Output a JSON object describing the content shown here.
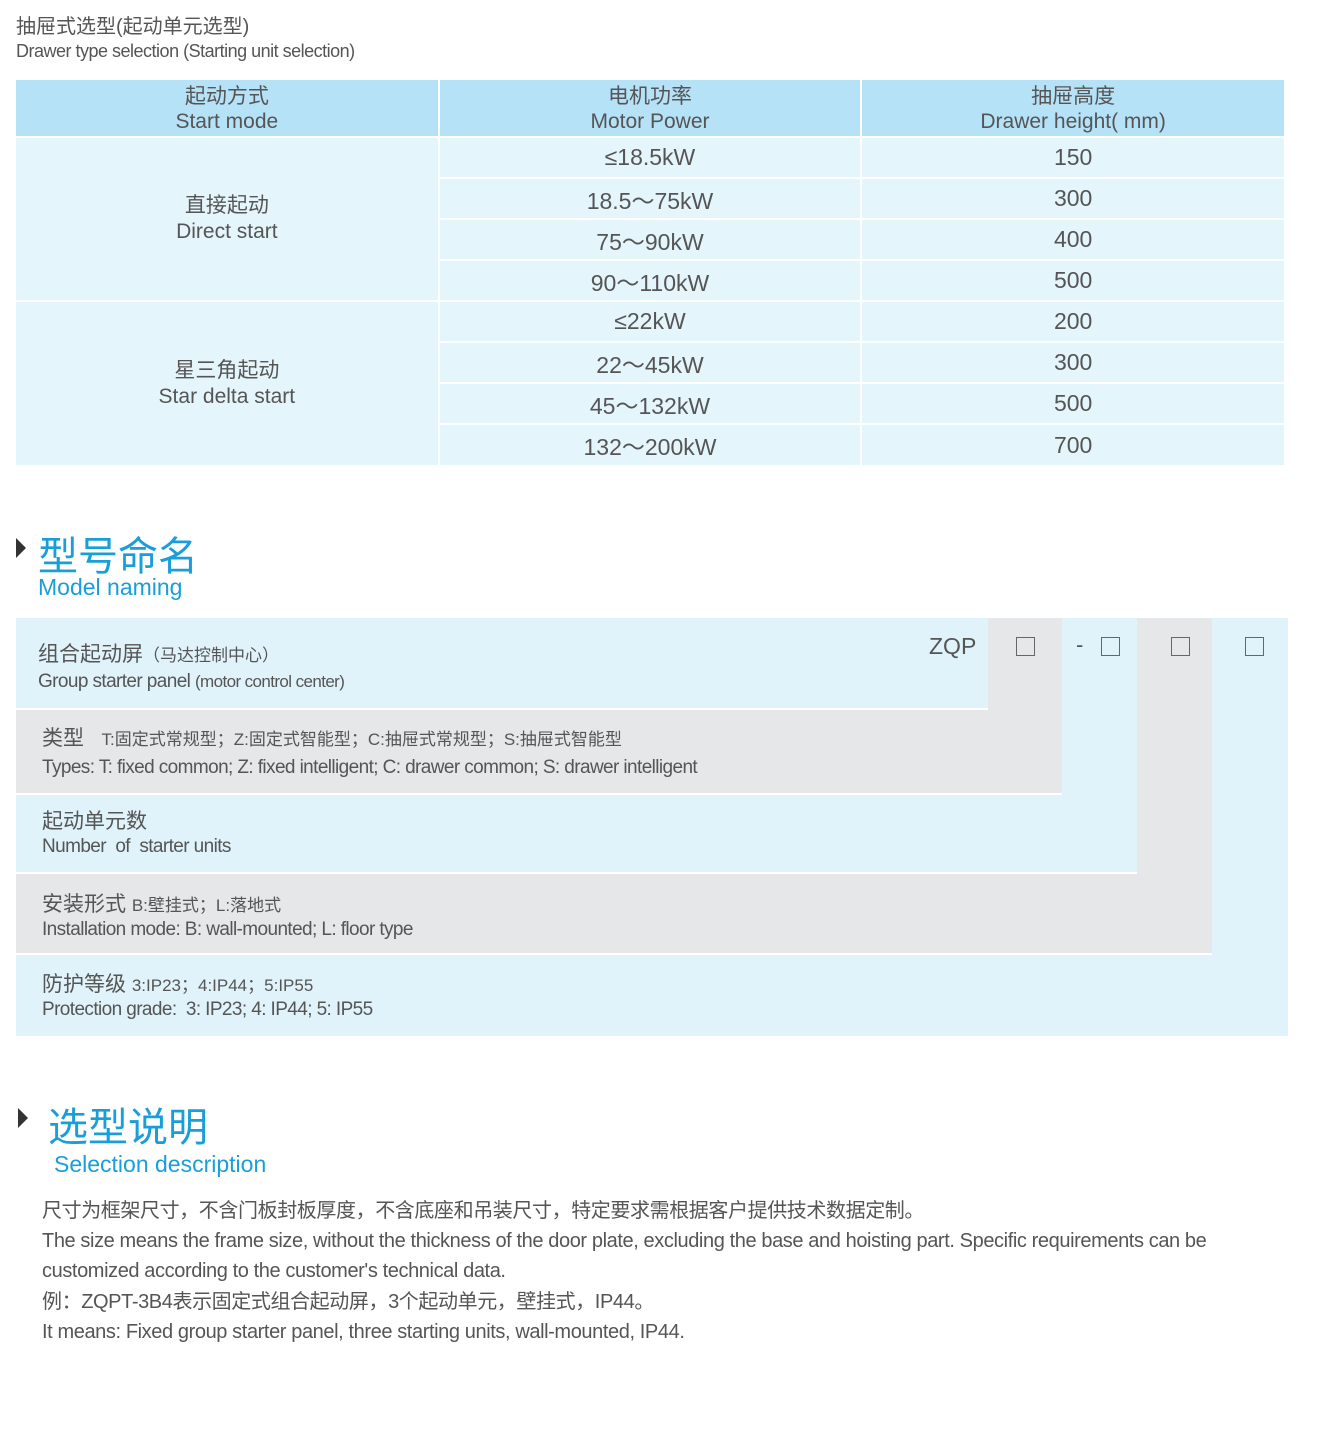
{
  "header": {
    "title_cn": "抽屉式选型(起动单元选型)",
    "title_en": "Drawer type selection (Starting unit selection)"
  },
  "table": {
    "columns": [
      {
        "cn": "起动方式",
        "en": "Start mode"
      },
      {
        "cn": "电机功率",
        "en": "Motor Power"
      },
      {
        "cn": "抽屉高度",
        "en": "Drawer height( mm)"
      }
    ],
    "groups": [
      {
        "cn": "直接起动",
        "en": "Direct start",
        "rows": [
          [
            "≤18.5kW",
            "150"
          ],
          [
            "18.5～75kW",
            "300"
          ],
          [
            "75～90kW",
            "400"
          ],
          [
            "90～110kW",
            "500"
          ]
        ]
      },
      {
        "cn": "星三角起动",
        "en": "Star delta start",
        "rows": [
          [
            "≤22kW",
            "200"
          ],
          [
            "22～45kW",
            "300"
          ],
          [
            "45～132kW",
            "500"
          ],
          [
            "132～200kW",
            "700"
          ]
        ]
      }
    ]
  },
  "naming": {
    "title_cn": "型号命名",
    "title_en": "Model naming",
    "code_prefix": "ZQP",
    "dash": "-",
    "rows": [
      {
        "cn": "组合起动屏",
        "cn_note": "（马达控制中心）",
        "en": "Group starter panel",
        "en_note": "(motor control center)"
      },
      {
        "cn": "类型",
        "cn_note": "T:固定式常规型；Z:固定式智能型；C:抽屉式常规型；S:抽屉式智能型",
        "en": "Types: T: fixed common; Z: fixed intelligent; C: drawer common; S: drawer intelligent"
      },
      {
        "cn": "起动单元数",
        "en": "Number  of  starter units"
      },
      {
        "cn": "安装形式",
        "cn_note": "B:壁挂式；L:落地式",
        "en": "Installation mode: B: wall-mounted; L: floor type"
      },
      {
        "cn": "防护等级",
        "cn_note": "3:IP23；4:IP44；5:IP55",
        "en": "Protection grade:  3: IP23; 4: IP44; 5: IP55"
      }
    ]
  },
  "selection": {
    "title_cn": "选型说明",
    "title_en": "Selection description",
    "lines": [
      "尺寸为框架尺寸，不含门板封板厚度，不含底座和吊装尺寸，特定要求需根据客户提供技术数据定制。",
      "The size means the frame size, without the thickness of the door plate, excluding the base and hoisting part. Specific requirements can be customized according to the customer's technical data.",
      "例：ZQPT-3B4表示固定式组合起动屏，3个起动单元，壁挂式，IP44。",
      "It means: Fixed group starter panel, three starting units, wall-mounted, IP44."
    ]
  },
  "colors": {
    "accent": "#1a9ed9",
    "header_bg": "#b5e2f7",
    "cell_bg": "#e5f5fc",
    "gray": "#e6e7e8"
  }
}
